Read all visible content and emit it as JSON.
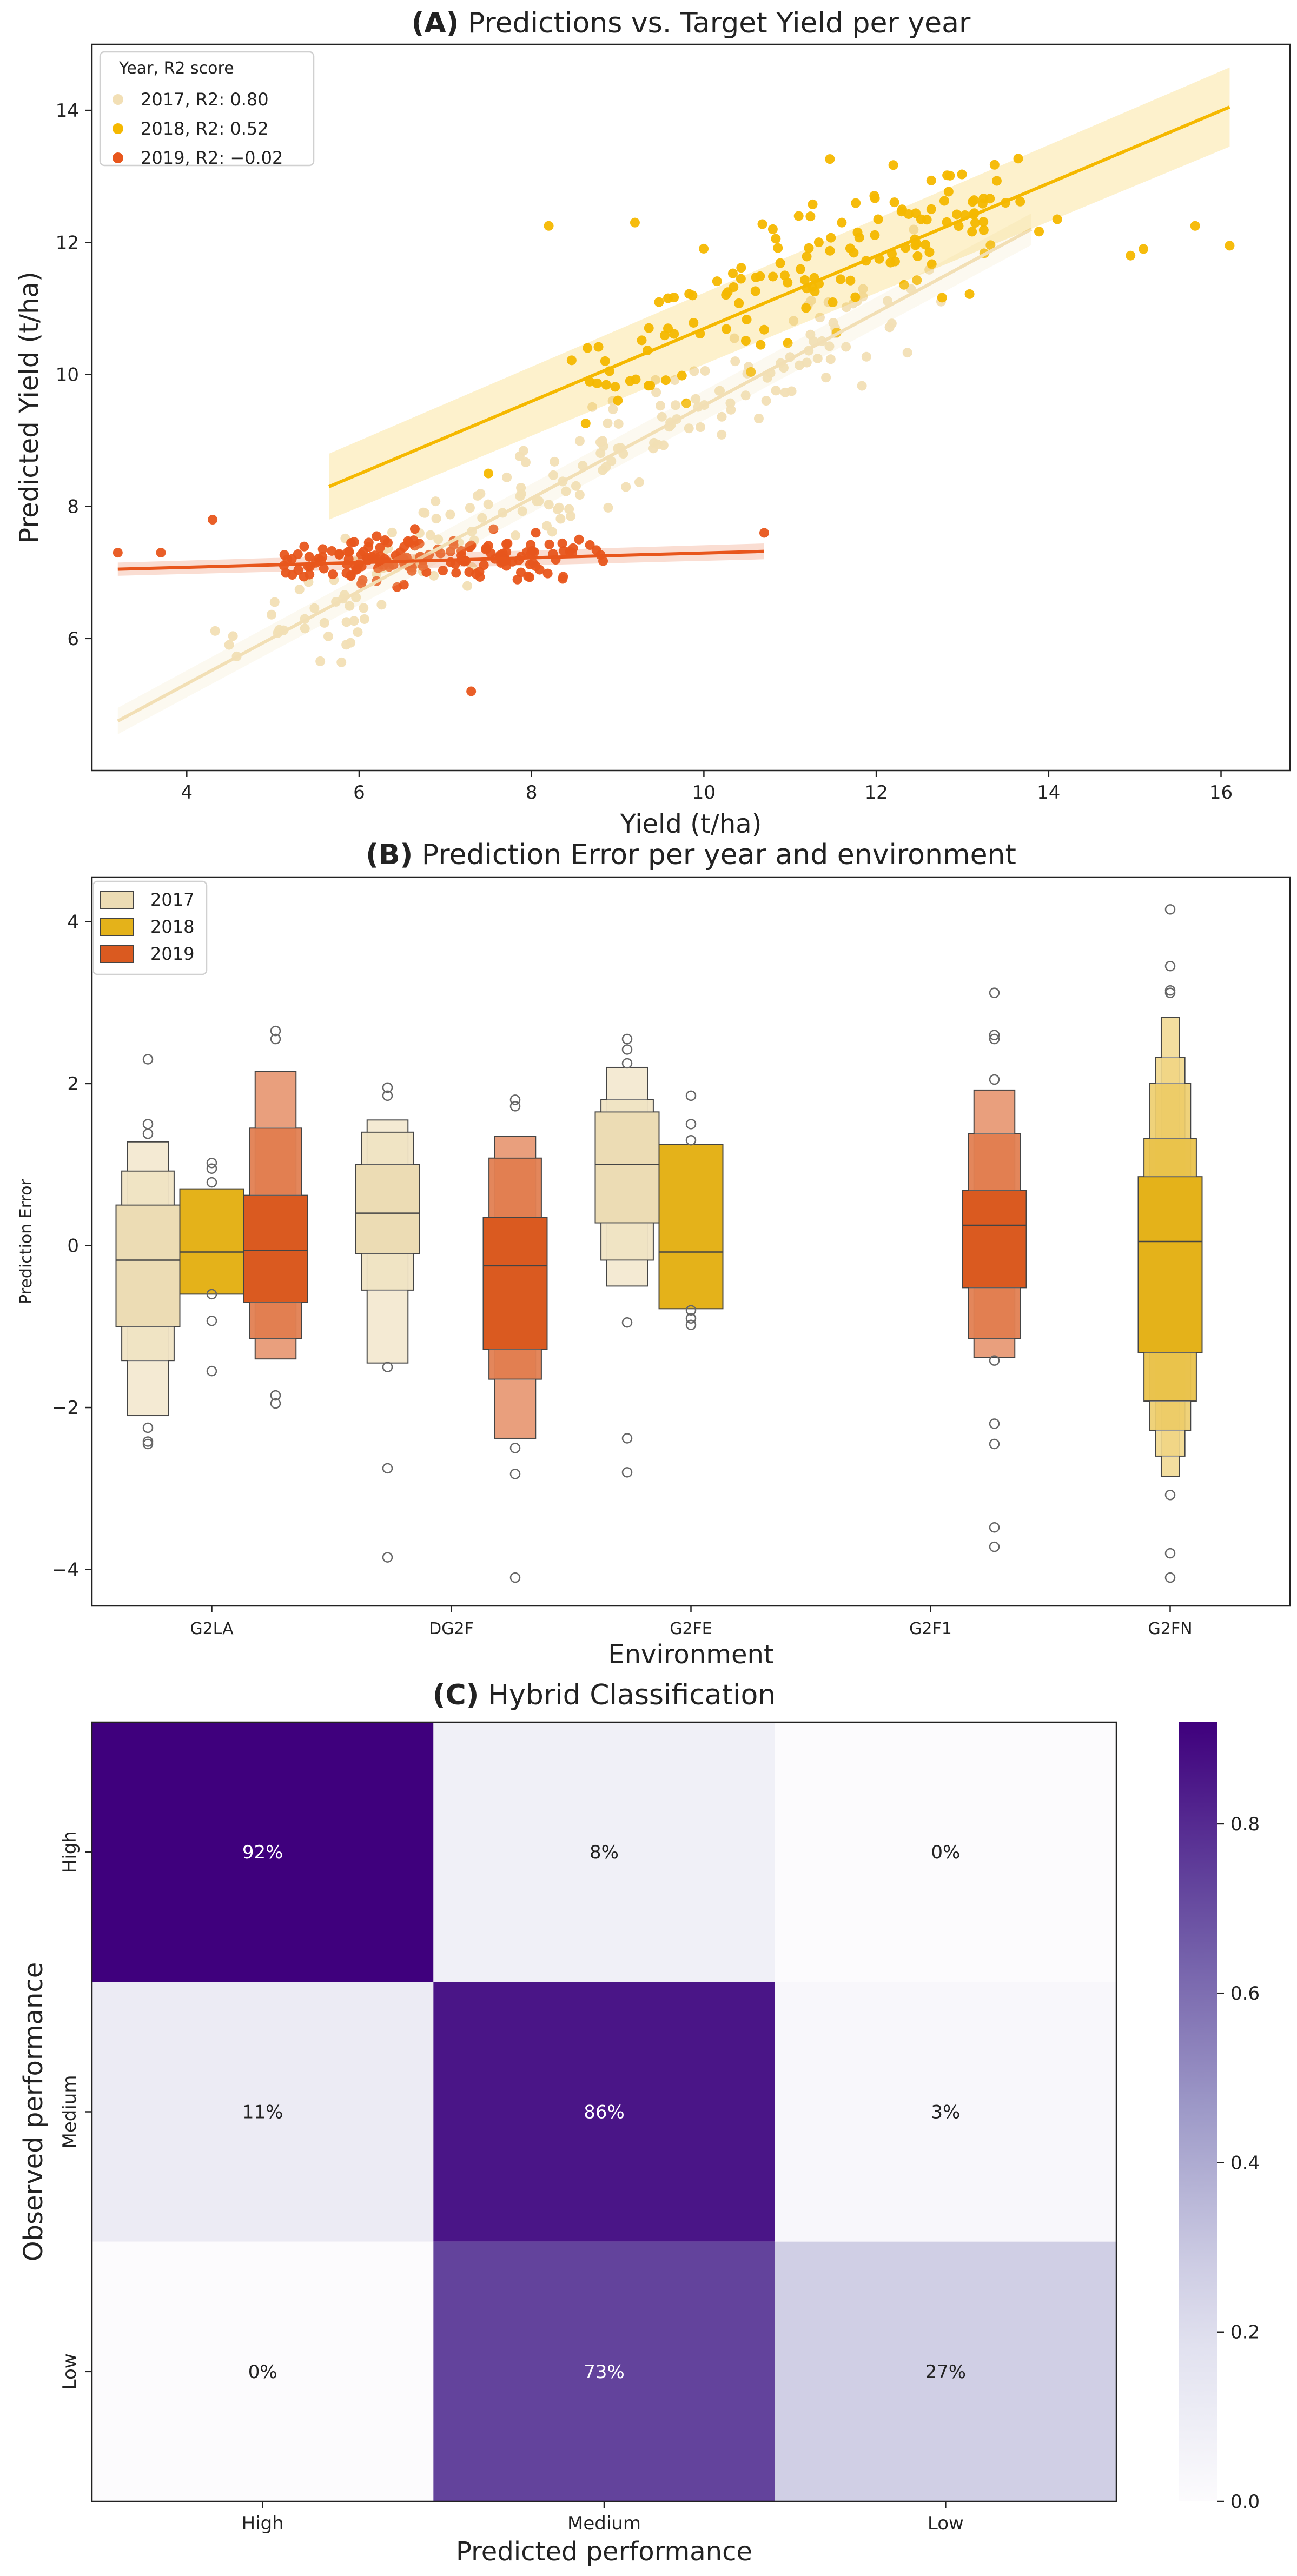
{
  "chart_data": [
    {
      "type": "scatter",
      "title_letter": "(A)",
      "title": "Predictions vs. Target Yield per year",
      "xlabel": "Yield (t/ha)",
      "ylabel": "Predicted Yield (t/ha)",
      "xlim": [
        2.9,
        16.8
      ],
      "ylim": [
        4.0,
        15.0
      ],
      "xticks": [
        4,
        6,
        8,
        10,
        12,
        14,
        16
      ],
      "yticks": [
        6,
        8,
        10,
        12,
        14
      ],
      "grid": false,
      "legend_title": "Year, R2 score",
      "legend_position": "top-left",
      "series": [
        {
          "name": "2017, R2: 0.80",
          "color": "#f2dfb5",
          "fit": [
            [
              3.2,
              4.75
            ],
            [
              13.8,
              12.2
            ]
          ],
          "ci": 0.2,
          "cloud": {
            "n": 185,
            "x_center": 8.6,
            "x_spread": 4.6,
            "slope": 0.703,
            "intercept": 2.5,
            "noise": 0.8,
            "seed": 17
          }
        },
        {
          "name": "2018, R2: 0.52",
          "color": "#f5b800",
          "fit": [
            [
              5.65,
              8.3
            ],
            [
              16.1,
              14.05
            ]
          ],
          "ci": 0.5,
          "cloud": {
            "n": 140,
            "x_center": 11.3,
            "x_spread": 3.0,
            "slope": 0.55,
            "intercept": 5.3,
            "noise": 1.0,
            "seed": 18
          },
          "points": [
            [
              10.8,
              12.2
            ],
            [
              11.1,
              12.4
            ],
            [
              11.6,
              12.3
            ],
            [
              12.3,
              12.5
            ],
            [
              13.5,
              12.6
            ],
            [
              14.1,
              12.35
            ],
            [
              15.7,
              12.25
            ],
            [
              16.1,
              11.95
            ],
            [
              15.1,
              11.9
            ],
            [
              14.95,
              11.8
            ],
            [
              9.2,
              12.3
            ],
            [
              8.2,
              12.25
            ],
            [
              7.5,
              8.5
            ]
          ]
        },
        {
          "name": "2019, R2: −0.02",
          "color": "#e8561c",
          "fit": [
            [
              3.2,
              7.05
            ],
            [
              10.7,
              7.32
            ]
          ],
          "ci": 0.1,
          "cloud": {
            "n": 165,
            "x_center": 7.0,
            "x_spread": 2.1,
            "slope": 0.036,
            "intercept": 6.95,
            "noise": 0.35,
            "seed": 19
          },
          "points": [
            [
              7.3,
              5.2
            ],
            [
              4.3,
              7.8
            ],
            [
              3.2,
              7.3
            ],
            [
              10.7,
              7.6
            ],
            [
              3.7,
              7.3
            ]
          ]
        }
      ]
    },
    {
      "type": "boxen",
      "title_letter": "(B)",
      "title": "Prediction Error per year and environment",
      "xlabel": "Environment",
      "ylabel": "Prediction Error",
      "ylim": [
        -4.45,
        4.55
      ],
      "yticks": [
        -4,
        -2,
        0,
        2,
        4
      ],
      "categories": [
        "G2LA",
        "DG2F",
        "G2FE",
        "G2F1",
        "G2FN"
      ],
      "legend_position": "top-left",
      "series": [
        {
          "name": "2017",
          "color": "#ecdcb4"
        },
        {
          "name": "2018",
          "color": "#e4b21a"
        },
        {
          "name": "2019",
          "color": "#da5a20"
        }
      ],
      "boxes": [
        {
          "env": 0,
          "year": 0,
          "median": -0.18,
          "levels": [
            [
              -1.0,
              0.5
            ],
            [
              -1.42,
              0.92
            ],
            [
              -2.1,
              1.28
            ]
          ],
          "outliers": [
            2.3,
            1.5,
            1.38,
            -2.25,
            -2.42,
            -2.45
          ]
        },
        {
          "env": 0,
          "year": 1,
          "median": -0.08,
          "levels": [
            [
              -0.6,
              0.7
            ]
          ],
          "outliers": [
            1.02,
            0.95,
            0.78,
            -0.6,
            -0.93,
            -1.55
          ]
        },
        {
          "env": 0,
          "year": 2,
          "median": -0.06,
          "levels": [
            [
              -0.7,
              0.62
            ],
            [
              -1.15,
              1.45
            ],
            [
              -1.4,
              2.15
            ]
          ],
          "outliers": [
            2.65,
            2.55,
            -1.85,
            -1.95
          ]
        },
        {
          "env": 1,
          "year": 0,
          "median": 0.4,
          "levels": [
            [
              -0.1,
              1.0
            ],
            [
              -0.55,
              1.4
            ],
            [
              -1.45,
              1.55
            ]
          ],
          "outliers": [
            1.95,
            1.85,
            -1.5,
            -2.75,
            -3.85
          ]
        },
        {
          "env": 1,
          "year": 2,
          "median": -0.25,
          "levels": [
            [
              -1.28,
              0.35
            ],
            [
              -1.65,
              1.08
            ],
            [
              -2.38,
              1.35
            ]
          ],
          "outliers": [
            1.8,
            1.72,
            -2.5,
            -2.82,
            -4.1
          ]
        },
        {
          "env": 2,
          "year": 0,
          "median": 1.0,
          "levels": [
            [
              0.28,
              1.65
            ],
            [
              -0.18,
              1.8
            ],
            [
              -0.5,
              2.2
            ]
          ],
          "outliers": [
            2.55,
            2.42,
            2.25,
            -0.95,
            -2.38,
            -2.8
          ]
        },
        {
          "env": 2,
          "year": 1,
          "median": -0.08,
          "levels": [
            [
              -0.78,
              1.25
            ]
          ],
          "outliers": [
            1.85,
            1.5,
            1.3,
            -0.8,
            -0.9,
            -0.98
          ]
        },
        {
          "env": 3,
          "year": 2,
          "median": 0.25,
          "levels": [
            [
              -0.52,
              0.68
            ],
            [
              -1.15,
              1.38
            ],
            [
              -1.38,
              1.92
            ]
          ],
          "outliers": [
            3.12,
            2.6,
            2.55,
            2.05,
            -1.42,
            -2.2,
            -2.45,
            -3.48,
            -3.72
          ]
        },
        {
          "env": 4,
          "year": 1,
          "median": 0.05,
          "levels": [
            [
              -1.32,
              0.85
            ],
            [
              -1.92,
              1.32
            ],
            [
              -2.28,
              2.0
            ],
            [
              -2.6,
              2.32
            ],
            [
              -2.85,
              2.82
            ]
          ],
          "outliers": [
            4.15,
            3.45,
            3.15,
            3.12,
            -3.08,
            -3.8,
            -4.1
          ]
        }
      ]
    },
    {
      "type": "heatmap",
      "title_letter": "(C)",
      "title": "Hybrid Classification",
      "xlabel": "Predicted performance",
      "ylabel": "Observed performance",
      "row_labels": [
        "High",
        "Medium",
        "Low"
      ],
      "col_labels": [
        "High",
        "Medium",
        "Low"
      ],
      "values": [
        [
          0.92,
          0.08,
          0.0
        ],
        [
          0.11,
          0.86,
          0.03
        ],
        [
          0.0,
          0.73,
          0.27
        ]
      ],
      "cell_labels": [
        [
          "92%",
          "8%",
          "0%"
        ],
        [
          "11%",
          "86%",
          "3%"
        ],
        [
          "0%",
          "73%",
          "27%"
        ]
      ],
      "colormap": "Purples",
      "colorbar_ticks": [
        0.0,
        0.2,
        0.4,
        0.6,
        0.8
      ],
      "colorbar_max": 0.92
    }
  ]
}
